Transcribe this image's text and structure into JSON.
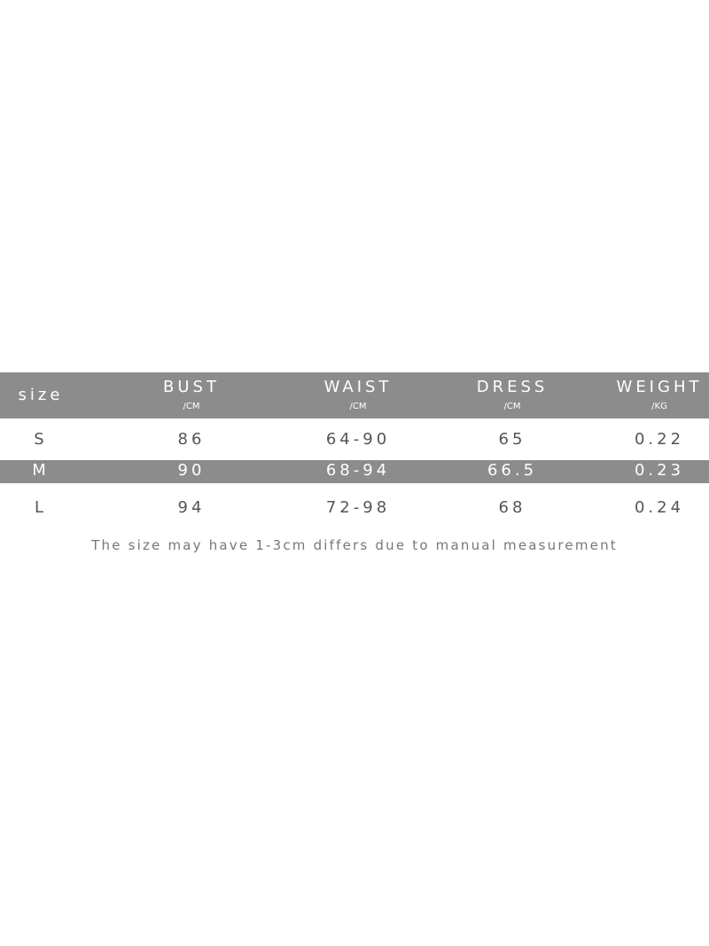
{
  "table": {
    "header": [
      {
        "name": "size"
      },
      {
        "name": "BUST",
        "unit": "/CM"
      },
      {
        "name": "WAIST",
        "unit": "/CM"
      },
      {
        "name": "DRESS",
        "unit": "/CM"
      },
      {
        "name": "WEIGHT",
        "unit": "/KG"
      }
    ],
    "rows": [
      [
        "S",
        "86",
        "64-90",
        "65",
        "0.22"
      ],
      [
        "M",
        "90",
        "68-94",
        "66.5",
        "0.23"
      ],
      [
        "L",
        "94",
        "72-98",
        "68",
        "0.24"
      ]
    ]
  },
  "note": "The size may have 1-3cm differs due to manual measurement"
}
